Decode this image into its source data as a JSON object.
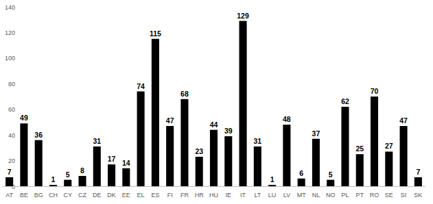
{
  "chart_data": {
    "type": "bar",
    "categories": [
      "AT",
      "BE",
      "BG",
      "CH",
      "CY",
      "CZ",
      "DE",
      "DK",
      "EE",
      "EL",
      "ES",
      "FI",
      "FR",
      "HR",
      "HU",
      "IE",
      "IT",
      "LT",
      "LU",
      "LV",
      "MT",
      "NL",
      "NO",
      "PL",
      "PT",
      "RO",
      "SE",
      "SI",
      "SK"
    ],
    "values": [
      7,
      49,
      36,
      1,
      5,
      8,
      31,
      17,
      14,
      74,
      115,
      47,
      68,
      23,
      44,
      39,
      129,
      31,
      1,
      48,
      6,
      37,
      5,
      62,
      25,
      70,
      27,
      47,
      7
    ],
    "color": "#000000",
    "ylim": [
      0,
      140
    ],
    "yticks": [
      0,
      20,
      40,
      60,
      80,
      100,
      120,
      140
    ],
    "grid": false,
    "data_labels": true
  }
}
